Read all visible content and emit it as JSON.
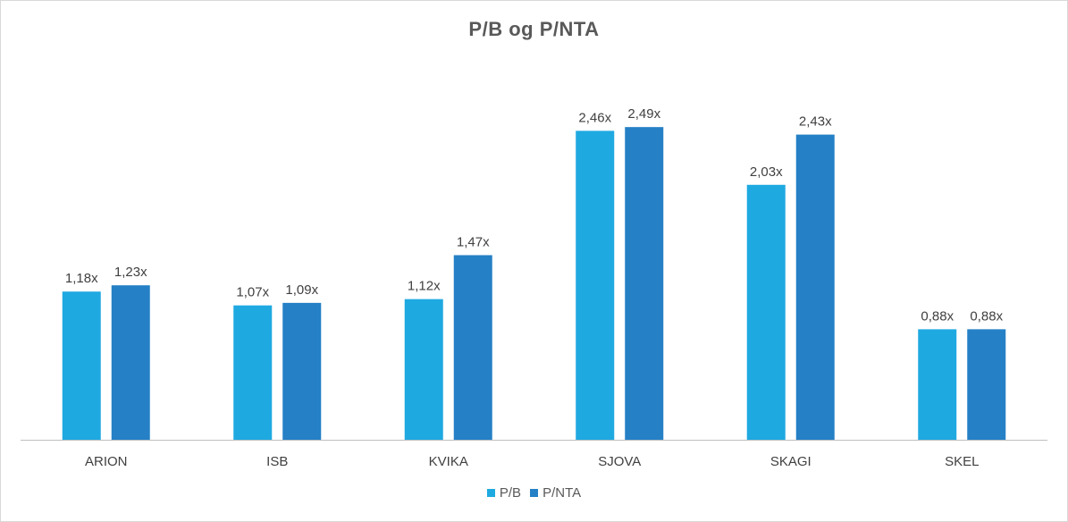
{
  "chart_data": {
    "type": "bar",
    "title": "P/B og P/NTA",
    "categories": [
      "ARION",
      "ISB",
      "KVIKA",
      "SJOVA",
      "SKAGI",
      "SKEL"
    ],
    "series": [
      {
        "name": "P/B",
        "color": "#1FA9E1",
        "values": [
          1.18,
          1.07,
          1.12,
          2.46,
          2.03,
          0.88
        ],
        "labels": [
          "1,18x",
          "1,07x",
          "1,12x",
          "2,46x",
          "2,03x",
          "0,88x"
        ]
      },
      {
        "name": "P/NTA",
        "color": "#2580C6",
        "values": [
          1.23,
          1.09,
          1.47,
          2.49,
          2.43,
          0.88
        ],
        "labels": [
          "1,23x",
          "1,09x",
          "1,47x",
          "2,49x",
          "2,43x",
          "0,88x"
        ]
      }
    ],
    "ylim": [
      0,
      3.3
    ],
    "grid": false,
    "legend_position": "bottom"
  }
}
